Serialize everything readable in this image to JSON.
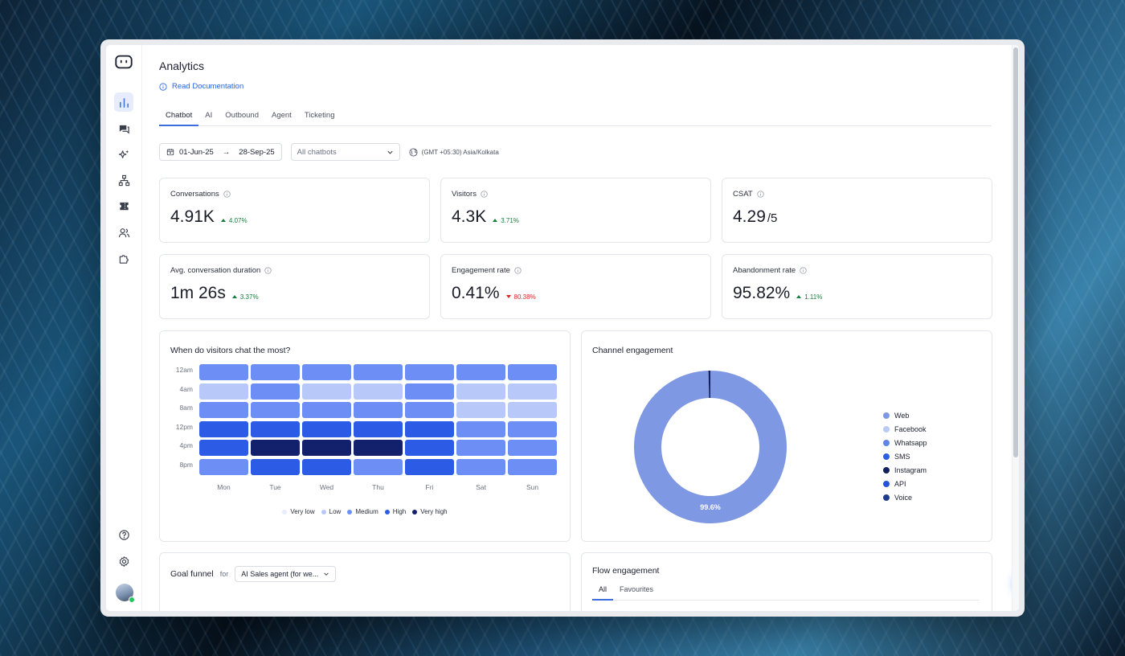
{
  "page": {
    "title": "Analytics",
    "doc_link": "Read Documentation"
  },
  "sidebar": {
    "items": [
      {
        "name": "analytics",
        "icon": "bar-chart-icon",
        "active": true
      },
      {
        "name": "conversations",
        "icon": "chat-icon",
        "active": false
      },
      {
        "name": "ai",
        "icon": "sparkles-icon",
        "active": false
      },
      {
        "name": "flows",
        "icon": "hierarchy-icon",
        "active": false
      },
      {
        "name": "tickets",
        "icon": "ticket-icon",
        "active": false
      },
      {
        "name": "contacts",
        "icon": "users-icon",
        "active": false
      },
      {
        "name": "integrations",
        "icon": "puzzle-icon",
        "active": false
      }
    ],
    "bottom": [
      {
        "name": "help",
        "icon": "help-circle-icon"
      },
      {
        "name": "settings",
        "icon": "gear-icon"
      }
    ]
  },
  "tabs": [
    {
      "label": "Chatbot",
      "active": true
    },
    {
      "label": "AI",
      "active": false
    },
    {
      "label": "Outbound",
      "active": false
    },
    {
      "label": "Agent",
      "active": false
    },
    {
      "label": "Ticketing",
      "active": false
    }
  ],
  "filters": {
    "date_from": "01-Jun-25",
    "date_to": "28-Sep-25",
    "chatbot_placeholder": "All chatbots",
    "timezone": "(GMT +05:30) Asia/Kolkata"
  },
  "metrics": [
    {
      "label": "Conversations",
      "value": "4.91K",
      "delta": "4.07%",
      "direction": "up"
    },
    {
      "label": "Visitors",
      "value": "4.3K",
      "delta": "3.71%",
      "direction": "up"
    },
    {
      "label": "CSAT",
      "value": "4.29",
      "suffix": "/5"
    },
    {
      "label": "Avg. conversation duration",
      "value": "1m 26s",
      "delta": "3.37%",
      "direction": "up"
    },
    {
      "label": "Engagement rate",
      "value": "0.41%",
      "delta": "80.38%",
      "direction": "down"
    },
    {
      "label": "Abandonment rate",
      "value": "95.82%",
      "delta": "1.11%",
      "direction": "up"
    }
  ],
  "heatmap": {
    "title": "When do visitors chat the most?",
    "rows": [
      "12am",
      "4am",
      "8am",
      "12pm",
      "4pm",
      "8pm"
    ],
    "cols": [
      "Mon",
      "Tue",
      "Wed",
      "Thu",
      "Fri",
      "Sat",
      "Sun"
    ],
    "levels": [
      [
        2,
        2,
        2,
        2,
        2,
        2,
        2
      ],
      [
        1,
        2,
        1,
        1,
        2,
        1,
        1
      ],
      [
        2,
        2,
        2,
        2,
        2,
        1,
        1
      ],
      [
        3,
        3,
        3,
        3,
        3,
        2,
        2
      ],
      [
        3,
        4,
        4,
        4,
        3,
        2,
        2
      ],
      [
        2,
        3,
        3,
        2,
        3,
        2,
        2
      ]
    ],
    "legend": [
      "Very low",
      "Low",
      "Medium",
      "High",
      "Very high"
    ],
    "level_colors": [
      "#e8ecfd",
      "#b8c8f9",
      "#6d8ef4",
      "#2c5ce6",
      "#13206b"
    ]
  },
  "channel": {
    "title": "Channel engagement",
    "legend": [
      {
        "name": "Web",
        "color": "#7f98e3"
      },
      {
        "name": "Facebook",
        "color": "#bccaf6"
      },
      {
        "name": "Whatsapp",
        "color": "#5f84ea"
      },
      {
        "name": "SMS",
        "color": "#2d5de2"
      },
      {
        "name": "Instagram",
        "color": "#12205c"
      },
      {
        "name": "API",
        "color": "#2452d6"
      },
      {
        "name": "Voice",
        "color": "#1e3c8e"
      }
    ],
    "chart_data": {
      "type": "pie",
      "labels": [
        "Web",
        "Instagram"
      ],
      "values": [
        99.6,
        0.4
      ],
      "data_label": "99.6%"
    }
  },
  "goal_funnel": {
    "title": "Goal funnel",
    "for_label": "for",
    "selected": "AI Sales agent (for we..."
  },
  "flow_engagement": {
    "title": "Flow engagement",
    "tabs": [
      {
        "label": "All",
        "active": true
      },
      {
        "label": "Favourites",
        "active": false
      }
    ]
  }
}
